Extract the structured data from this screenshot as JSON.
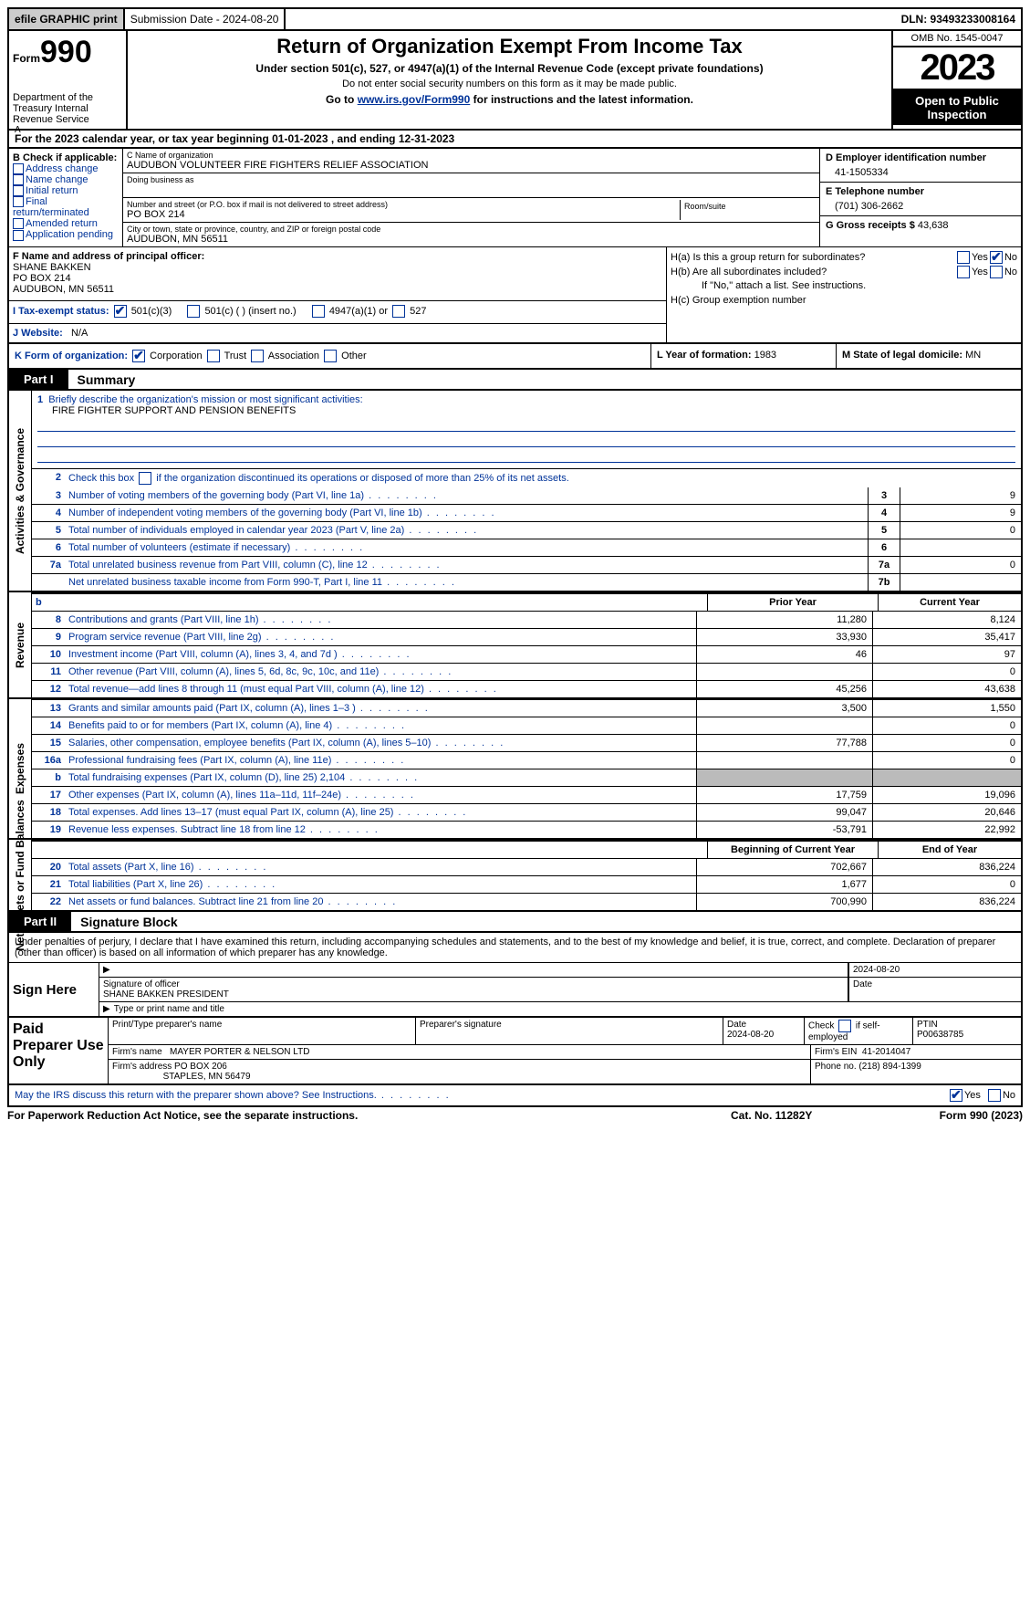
{
  "top": {
    "efile": "efile GRAPHIC print",
    "submission_label": "Submission Date - 2024-08-20",
    "dln_label": "DLN: 93493233008164"
  },
  "header": {
    "form_word": "Form",
    "form_number": "990",
    "dept": "Department of the Treasury Internal Revenue Service",
    "title": "Return of Organization Exempt From Income Tax",
    "sub1": "Under section 501(c), 527, or 4947(a)(1) of the Internal Revenue Code (except private foundations)",
    "sub2": "Do not enter social security numbers on this form as it may be made public.",
    "goto_pre": "Go to ",
    "goto_link": "www.irs.gov/Form990",
    "goto_post": " for instructions and the latest information.",
    "omb": "OMB No. 1545-0047",
    "year": "2023",
    "inspection": "Open to Public Inspection"
  },
  "period": {
    "line": "For the 2023 calendar year, or tax year beginning 01-01-2023   , and ending 12-31-2023"
  },
  "boxB": {
    "header": "B Check if applicable:",
    "opts": [
      "Address change",
      "Name change",
      "Initial return",
      "Final return/terminated",
      "Amended return",
      "Application pending"
    ]
  },
  "boxC": {
    "name_label": "C Name of organization",
    "name": "AUDUBON VOLUNTEER FIRE FIGHTERS RELIEF ASSOCIATION",
    "dba_label": "Doing business as",
    "addr_label": "Number and street (or P.O. box if mail is not delivered to street address)",
    "room_label": "Room/suite",
    "addr": "PO BOX 214",
    "city_label": "City or town, state or province, country, and ZIP or foreign postal code",
    "city": "AUDUBON, MN  56511"
  },
  "boxD": {
    "label": "D Employer identification number",
    "value": "41-1505334"
  },
  "boxE": {
    "label": "E Telephone number",
    "value": "(701) 306-2662"
  },
  "boxG": {
    "label": "G Gross receipts $",
    "value": "43,638"
  },
  "boxF": {
    "label": "F  Name and address of principal officer:",
    "name": "SHANE BAKKEN",
    "addr1": "PO BOX 214",
    "addr2": "AUDUBON, MN  56511"
  },
  "boxH": {
    "a_label": "H(a)  Is this a group return for subordinates?",
    "b_label": "H(b)  Are all subordinates included?",
    "b_note": "If \"No,\" attach a list. See instructions.",
    "c_label": "H(c)  Group exemption number",
    "yes": "Yes",
    "no": "No"
  },
  "boxI": {
    "label": "I   Tax-exempt status:",
    "o1": "501(c)(3)",
    "o2": "501(c) (  ) (insert no.)",
    "o3": "4947(a)(1) or",
    "o4": "527"
  },
  "boxJ": {
    "label": "J   Website:",
    "value": "N/A"
  },
  "boxK": {
    "label": "K Form of organization:",
    "o1": "Corporation",
    "o2": "Trust",
    "o3": "Association",
    "o4": "Other"
  },
  "boxL": {
    "label": "L Year of formation:",
    "value": "1983"
  },
  "boxM": {
    "label": "M State of legal domicile:",
    "value": "MN"
  },
  "part1": {
    "tab": "Part I",
    "title": "Summary"
  },
  "summary": {
    "line1_label": "Briefly describe the organization's mission or most significant activities:",
    "line1_value": "FIRE FIGHTER SUPPORT AND PENSION BENEFITS",
    "line2": "Check this box        if the organization discontinued its operations or disposed of more than 25% of its net assets.",
    "rows_top": [
      {
        "n": "3",
        "d": "Number of voting members of the governing body (Part VI, line 1a)",
        "b": "3",
        "v": "9"
      },
      {
        "n": "4",
        "d": "Number of independent voting members of the governing body (Part VI, line 1b)",
        "b": "4",
        "v": "9"
      },
      {
        "n": "5",
        "d": "Total number of individuals employed in calendar year 2023 (Part V, line 2a)",
        "b": "5",
        "v": "0"
      },
      {
        "n": "6",
        "d": "Total number of volunteers (estimate if necessary)",
        "b": "6",
        "v": ""
      },
      {
        "n": "7a",
        "d": "Total unrelated business revenue from Part VIII, column (C), line 12",
        "b": "7a",
        "v": "0"
      },
      {
        "n": "",
        "d": "Net unrelated business taxable income from Form 990-T, Part I, line 11",
        "b": "7b",
        "v": ""
      }
    ],
    "col_hdr_b": "b",
    "col_prior": "Prior Year",
    "col_current": "Current Year",
    "revenue": [
      {
        "n": "8",
        "d": "Contributions and grants (Part VIII, line 1h)",
        "p": "11,280",
        "c": "8,124"
      },
      {
        "n": "9",
        "d": "Program service revenue (Part VIII, line 2g)",
        "p": "33,930",
        "c": "35,417"
      },
      {
        "n": "10",
        "d": "Investment income (Part VIII, column (A), lines 3, 4, and 7d )",
        "p": "46",
        "c": "97"
      },
      {
        "n": "11",
        "d": "Other revenue (Part VIII, column (A), lines 5, 6d, 8c, 9c, 10c, and 11e)",
        "p": "",
        "c": "0"
      },
      {
        "n": "12",
        "d": "Total revenue—add lines 8 through 11 (must equal Part VIII, column (A), line 12)",
        "p": "45,256",
        "c": "43,638"
      }
    ],
    "expenses": [
      {
        "n": "13",
        "d": "Grants and similar amounts paid (Part IX, column (A), lines 1–3 )",
        "p": "3,500",
        "c": "1,550"
      },
      {
        "n": "14",
        "d": "Benefits paid to or for members (Part IX, column (A), line 4)",
        "p": "",
        "c": "0"
      },
      {
        "n": "15",
        "d": "Salaries, other compensation, employee benefits (Part IX, column (A), lines 5–10)",
        "p": "77,788",
        "c": "0"
      },
      {
        "n": "16a",
        "d": "Professional fundraising fees (Part IX, column (A), line 11e)",
        "p": "",
        "c": "0"
      },
      {
        "n": "b",
        "d": "Total fundraising expenses (Part IX, column (D), line 25) 2,104",
        "p": "SHADE",
        "c": "SHADE"
      },
      {
        "n": "17",
        "d": "Other expenses (Part IX, column (A), lines 11a–11d, 11f–24e)",
        "p": "17,759",
        "c": "19,096"
      },
      {
        "n": "18",
        "d": "Total expenses. Add lines 13–17 (must equal Part IX, column (A), line 25)",
        "p": "99,047",
        "c": "20,646"
      },
      {
        "n": "19",
        "d": "Revenue less expenses. Subtract line 18 from line 12",
        "p": "-53,791",
        "c": "22,992"
      }
    ],
    "col_begin": "Beginning of Current Year",
    "col_end": "End of Year",
    "netassets": [
      {
        "n": "20",
        "d": "Total assets (Part X, line 16)",
        "p": "702,667",
        "c": "836,224"
      },
      {
        "n": "21",
        "d": "Total liabilities (Part X, line 26)",
        "p": "1,677",
        "c": "0"
      },
      {
        "n": "22",
        "d": "Net assets or fund balances. Subtract line 21 from line 20",
        "p": "700,990",
        "c": "836,224"
      }
    ]
  },
  "sidelabels": {
    "gov": "Activities & Governance",
    "rev": "Revenue",
    "exp": "Expenses",
    "net": "Net Assets or Fund Balances"
  },
  "part2": {
    "tab": "Part II",
    "title": "Signature Block"
  },
  "penalties": "Under penalties of perjury, I declare that I have examined this return, including accompanying schedules and statements, and to the best of my knowledge and belief, it is true, correct, and complete. Declaration of preparer (other than officer) is based on all information of which preparer has any knowledge.",
  "sign": {
    "here": "Sign Here",
    "sig_label": "Signature of officer",
    "date_value": "2024-08-20",
    "date_label": "Date",
    "name": "SHANE BAKKEN  PRESIDENT",
    "name_label": "Type or print name and title"
  },
  "preparer": {
    "left": "Paid Preparer Use Only",
    "c1": "Print/Type preparer's name",
    "c2": "Preparer's signature",
    "c3_label": "Date",
    "c3_value": "2024-08-20",
    "c4_label": "Check         if self-employed",
    "c5_label": "PTIN",
    "c5_value": "P00638785",
    "firm_name_label": "Firm's name",
    "firm_name": "MAYER PORTER & NELSON LTD",
    "firm_ein_label": "Firm's EIN",
    "firm_ein": "41-2014047",
    "firm_addr_label": "Firm's address",
    "firm_addr1": "PO BOX 206",
    "firm_addr2": "STAPLES, MN  56479",
    "phone_label": "Phone no.",
    "phone": "(218) 894-1399"
  },
  "discuss": {
    "q": "May the IRS discuss this return with the preparer shown above? See Instructions.",
    "yes": "Yes",
    "no": "No"
  },
  "footer": {
    "left": "For Paperwork Reduction Act Notice, see the separate instructions.",
    "mid": "Cat. No. 11282Y",
    "right_pre": "Form ",
    "right_b": "990",
    "right_post": " (2023)"
  }
}
